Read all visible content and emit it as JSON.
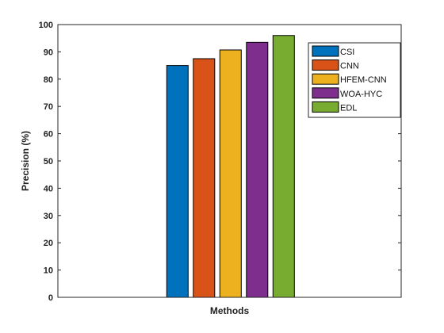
{
  "chart_data": {
    "type": "bar",
    "categories": [
      "Methods"
    ],
    "series": [
      {
        "name": "CSI",
        "values": [
          85
        ],
        "color": "#0072BD"
      },
      {
        "name": "CNN",
        "values": [
          87.5
        ],
        "color": "#D95319"
      },
      {
        "name": "HFEM-CNN",
        "values": [
          90.7
        ],
        "color": "#EDB120"
      },
      {
        "name": "WOA-HYC",
        "values": [
          93.5
        ],
        "color": "#7E2F8E"
      },
      {
        "name": "EDL",
        "values": [
          96
        ],
        "color": "#77AC30"
      }
    ],
    "title": "",
    "xlabel": "Methods",
    "ylabel": "Precision (%)",
    "ylim": [
      0,
      100
    ],
    "yticks": [
      0,
      10,
      20,
      30,
      40,
      50,
      60,
      70,
      80,
      90,
      100
    ],
    "grid": false,
    "legend_position": "top-right"
  }
}
